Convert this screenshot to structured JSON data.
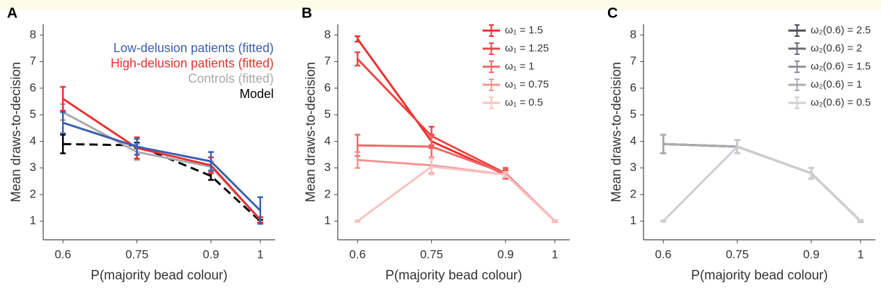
{
  "chart_data": [
    {
      "type": "line",
      "panel_label": "A",
      "xlabel": "P(majority bead colour)",
      "ylabel": "Mean draws-to-decision",
      "x": [
        0.6,
        0.75,
        0.9,
        1
      ],
      "xlim": [
        0.56,
        1.03
      ],
      "xticks": [
        0.6,
        0.75,
        0.9,
        1
      ],
      "ylim": [
        0.3,
        8.4
      ],
      "yticks": [
        1,
        2,
        3,
        4,
        5,
        6,
        7,
        8
      ],
      "legend": "upper right",
      "legend_style": "text",
      "series": [
        {
          "name": "Model",
          "color": "#000000",
          "dashed": true,
          "values": [
            3.9,
            3.85,
            2.7,
            1.0
          ],
          "errors": [
            0.35,
            0.1,
            0.15,
            0.05
          ]
        },
        {
          "name": "Controls (fitted)",
          "color": "#a9a9ab",
          "values": [
            5.1,
            3.6,
            3.05,
            1.05
          ],
          "errors": [
            0.3,
            0.3,
            0.2,
            0.1
          ]
        },
        {
          "name": "High-delusion patients (fitted)",
          "color": "#e8312f",
          "values": [
            5.6,
            3.75,
            3.1,
            1.05
          ],
          "errors": [
            0.45,
            0.4,
            0.3,
            0.1
          ]
        },
        {
          "name": "Low-delusion patients (fitted)",
          "color": "#3b5fb0",
          "values": [
            4.7,
            3.8,
            3.25,
            1.4
          ],
          "errors": [
            0.4,
            0.3,
            0.35,
            0.5
          ]
        }
      ]
    },
    {
      "type": "line",
      "panel_label": "B",
      "xlabel": "P(majority bead colour)",
      "ylabel": "Mean draws-to-decision",
      "x": [
        0.6,
        0.75,
        0.9,
        1
      ],
      "xlim": [
        0.56,
        1.03
      ],
      "xticks": [
        0.6,
        0.75,
        0.9,
        1
      ],
      "ylim": [
        0.3,
        8.4
      ],
      "yticks": [
        1,
        2,
        3,
        4,
        5,
        6,
        7,
        8
      ],
      "legend": "upper right",
      "legend_style": "line",
      "series": [
        {
          "name": "ω₁ = 1.5",
          "color": "#e8312f",
          "values": [
            7.85,
            4.0,
            2.75,
            1.0
          ],
          "errors": [
            0.1,
            0.25,
            0.15,
            0.03
          ]
        },
        {
          "name": "ω₁ = 1.25",
          "color": "#ea4644",
          "values": [
            7.1,
            4.2,
            2.8,
            1.0
          ],
          "errors": [
            0.25,
            0.35,
            0.2,
            0.03
          ]
        },
        {
          "name": "ω₁ = 1",
          "color": "#ee6866",
          "values": [
            3.85,
            3.8,
            2.8,
            1.0
          ],
          "errors": [
            0.4,
            0.4,
            0.15,
            0.03
          ]
        },
        {
          "name": "ω₁ = 0.75",
          "color": "#f29392",
          "values": [
            3.3,
            3.1,
            2.75,
            1.0
          ],
          "errors": [
            0.3,
            0.3,
            0.1,
            0.03
          ]
        },
        {
          "name": "ω₁ = 0.5",
          "color": "#f7c3c2",
          "values": [
            1.0,
            3.05,
            2.75,
            1.0
          ],
          "errors": [
            0.03,
            0.3,
            0.1,
            0.03
          ]
        }
      ]
    },
    {
      "type": "line",
      "panel_label": "C",
      "xlabel": "P(majority bead colour)",
      "ylabel": "Mean draws-to-decision",
      "x": [
        0.6,
        0.75,
        0.9,
        1
      ],
      "xlim": [
        0.56,
        1.03
      ],
      "xticks": [
        0.6,
        0.75,
        0.9,
        1
      ],
      "ylim": [
        0.3,
        8.4
      ],
      "yticks": [
        1,
        2,
        3,
        4,
        5,
        6,
        7,
        8
      ],
      "legend": "upper right",
      "legend_style": "line",
      "series": [
        {
          "name": "ω₂(0.6) = 2.5",
          "color": "#4d4d52",
          "values": [
            3.9,
            3.8,
            2.8,
            1.0
          ],
          "errors": [
            0.35,
            0.25,
            0.2,
            0.03
          ]
        },
        {
          "name": "ω₂(0.6) = 2",
          "color": "#6b6b71",
          "values": [
            3.9,
            3.8,
            2.8,
            1.0
          ],
          "errors": [
            0.35,
            0.25,
            0.2,
            0.03
          ]
        },
        {
          "name": "ω₂(0.6) = 1.5",
          "color": "#8b8b91",
          "values": [
            3.9,
            3.8,
            2.8,
            1.0
          ],
          "errors": [
            0.35,
            0.25,
            0.2,
            0.03
          ]
        },
        {
          "name": "ω₂(0.6) = 1",
          "color": "#ababb0",
          "values": [
            3.9,
            3.8,
            2.8,
            1.0
          ],
          "errors": [
            0.35,
            0.25,
            0.2,
            0.03
          ]
        },
        {
          "name": "ω₂(0.6) = 0.5",
          "color": "#cfcfd2",
          "values": [
            1.0,
            3.8,
            2.8,
            1.0
          ],
          "errors": [
            0.03,
            0.25,
            0.2,
            0.03
          ]
        }
      ]
    }
  ]
}
